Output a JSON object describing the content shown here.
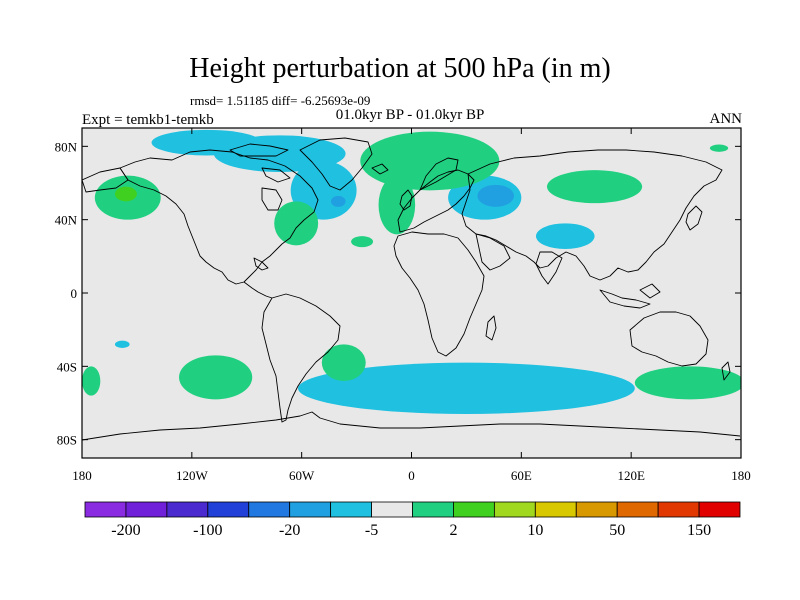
{
  "title": "Height perturbation at 500 hPa (in m)",
  "stats": "rmsd= 1.51185 diff= -6.25693e-09",
  "period": "01.0kyr BP - 01.0kyr BP",
  "experiment": "Expt = temkb1-temkb",
  "season": "ANN",
  "map": {
    "projection": "cylindrical equidistant",
    "lon_range": [
      -180,
      180
    ],
    "lat_range": [
      -90,
      90
    ],
    "background_color": "#e8e8e8",
    "lat_ticks": [
      {
        "value": 80,
        "label": "80N"
      },
      {
        "value": 40,
        "label": "40N"
      },
      {
        "value": 0,
        "label": "0"
      },
      {
        "value": -40,
        "label": "40S"
      },
      {
        "value": -80,
        "label": "80S"
      }
    ],
    "lon_ticks": [
      {
        "value": -180,
        "label": "180"
      },
      {
        "value": -120,
        "label": "120W"
      },
      {
        "value": -60,
        "label": "60W"
      },
      {
        "value": 0,
        "label": "0"
      },
      {
        "value": 60,
        "label": "60E"
      },
      {
        "value": 120,
        "label": "120E"
      },
      {
        "value": 180,
        "label": "180"
      }
    ]
  },
  "colorbar": {
    "colors": [
      "#8a2be2",
      "#7020d8",
      "#4b2bd0",
      "#2040d8",
      "#2078e0",
      "#20a0e0",
      "#20c0e0",
      "#e8e8e8",
      "#20d080",
      "#40d020",
      "#a0d820",
      "#d8c800",
      "#d89800",
      "#e06800",
      "#e03800",
      "#e00000"
    ],
    "labels": [
      {
        "index": 1,
        "text": "-200"
      },
      {
        "index": 3,
        "text": "-100"
      },
      {
        "index": 5,
        "text": "-20"
      },
      {
        "index": 7,
        "text": "-5"
      },
      {
        "index": 9,
        "text": "2"
      },
      {
        "index": 11,
        "text": "10"
      },
      {
        "index": 13,
        "text": "50"
      },
      {
        "index": 15,
        "text": "150"
      }
    ]
  },
  "anomalies": [
    {
      "sign": "negative",
      "lon": -112,
      "lat": 82,
      "rlon": 30,
      "rlat": 7,
      "color": "#20c0e0"
    },
    {
      "sign": "negative",
      "lon": -72,
      "lat": 76,
      "rlon": 36,
      "rlat": 10,
      "color": "#20c0e0"
    },
    {
      "sign": "negative",
      "lon": -48,
      "lat": 56,
      "rlon": 18,
      "rlat": 16,
      "color": "#20c0e0"
    },
    {
      "sign": "negative",
      "lon": -40,
      "lat": 50,
      "rlon": 4,
      "rlat": 3,
      "color": "#20a0e0"
    },
    {
      "sign": "negative",
      "lon": 40,
      "lat": 52,
      "rlon": 20,
      "rlat": 12,
      "color": "#20c0e0"
    },
    {
      "sign": "negative",
      "lon": 46,
      "lat": 53,
      "rlon": 10,
      "rlat": 6,
      "color": "#20a0e0"
    },
    {
      "sign": "negative",
      "lon": 84,
      "lat": 31,
      "rlon": 16,
      "rlat": 7,
      "color": "#20c0e0"
    },
    {
      "sign": "negative",
      "lon": 30,
      "lat": -52,
      "rlon": 92,
      "rlat": 14,
      "color": "#20c0e0"
    },
    {
      "sign": "negative",
      "lon": -158,
      "lat": -28,
      "rlon": 4,
      "rlat": 2,
      "color": "#20c0e0"
    },
    {
      "sign": "positive",
      "lon": 10,
      "lat": 72,
      "rlon": 38,
      "rlat": 16,
      "color": "#20d080"
    },
    {
      "sign": "positive",
      "lon": -8,
      "lat": 48,
      "rlon": 10,
      "rlat": 16,
      "color": "#20d080"
    },
    {
      "sign": "positive",
      "lon": -155,
      "lat": 52,
      "rlon": 18,
      "rlat": 12,
      "color": "#20d080"
    },
    {
      "sign": "positive",
      "lon": -156,
      "lat": 54,
      "rlon": 6,
      "rlat": 4,
      "color": "#40d020"
    },
    {
      "sign": "positive",
      "lon": -63,
      "lat": 38,
      "rlon": 12,
      "rlat": 12,
      "color": "#20d080"
    },
    {
      "sign": "positive",
      "lon": -27,
      "lat": 28,
      "rlon": 6,
      "rlat": 3,
      "color": "#20d080"
    },
    {
      "sign": "positive",
      "lon": 100,
      "lat": 58,
      "rlon": 26,
      "rlat": 9,
      "color": "#20d080"
    },
    {
      "sign": "positive",
      "lon": 168,
      "lat": 79,
      "rlon": 5,
      "rlat": 2,
      "color": "#20d080"
    },
    {
      "sign": "positive",
      "lon": -175,
      "lat": -48,
      "rlon": 5,
      "rlat": 8,
      "color": "#20d080"
    },
    {
      "sign": "positive",
      "lon": -107,
      "lat": -46,
      "rlon": 20,
      "rlat": 12,
      "color": "#20d080"
    },
    {
      "sign": "positive",
      "lon": -37,
      "lat": -38,
      "rlon": 12,
      "rlat": 10,
      "color": "#20d080"
    },
    {
      "sign": "positive",
      "lon": 152,
      "lat": -49,
      "rlon": 30,
      "rlat": 9,
      "color": "#20d080"
    }
  ]
}
